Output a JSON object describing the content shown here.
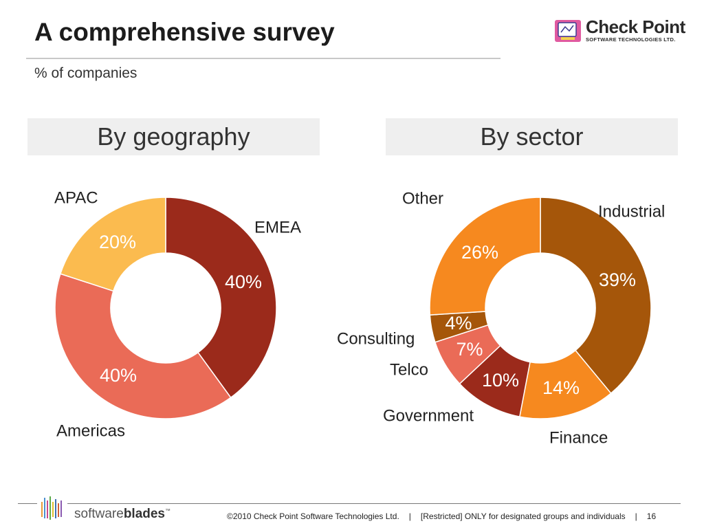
{
  "slide": {
    "title": "A comprehensive survey",
    "subtitle": "% of companies",
    "page_number": "16"
  },
  "logo": {
    "brand": "Check Point",
    "tagline": "SOFTWARE TECHNOLOGIES LTD."
  },
  "footer": {
    "copyright": "©2010 Check Point Software Technologies Ltd.",
    "separator": "|",
    "classification": "[Restricted] ONLY for designated groups and individuals",
    "brand_light": "software",
    "brand_bold": "blades",
    "brand_tm": "™"
  },
  "chart_data": [
    {
      "type": "pie",
      "donut": true,
      "title": "By geography",
      "slices": [
        {
          "label": "EMEA",
          "value": 40,
          "value_label": "40%",
          "color": "#9b2a1b"
        },
        {
          "label": "Americas",
          "value": 40,
          "value_label": "40%",
          "color": "#ea6b57"
        },
        {
          "label": "APAC",
          "value": 20,
          "value_label": "20%",
          "color": "#fbbb4f"
        }
      ]
    },
    {
      "type": "pie",
      "donut": true,
      "title": "By sector",
      "slices": [
        {
          "label": "Industrial",
          "value": 39,
          "value_label": "39%",
          "color": "#a5560a"
        },
        {
          "label": "Finance",
          "value": 14,
          "value_label": "14%",
          "color": "#f6891f"
        },
        {
          "label": "Government",
          "value": 10,
          "value_label": "10%",
          "color": "#9b2a1b"
        },
        {
          "label": "Telco",
          "value": 7,
          "value_label": "7%",
          "color": "#ea6b57"
        },
        {
          "label": "Consulting",
          "value": 4,
          "value_label": "4%",
          "color": "#a5560a"
        },
        {
          "label": "Other",
          "value": 26,
          "value_label": "26%",
          "color": "#f6891f"
        }
      ]
    }
  ]
}
